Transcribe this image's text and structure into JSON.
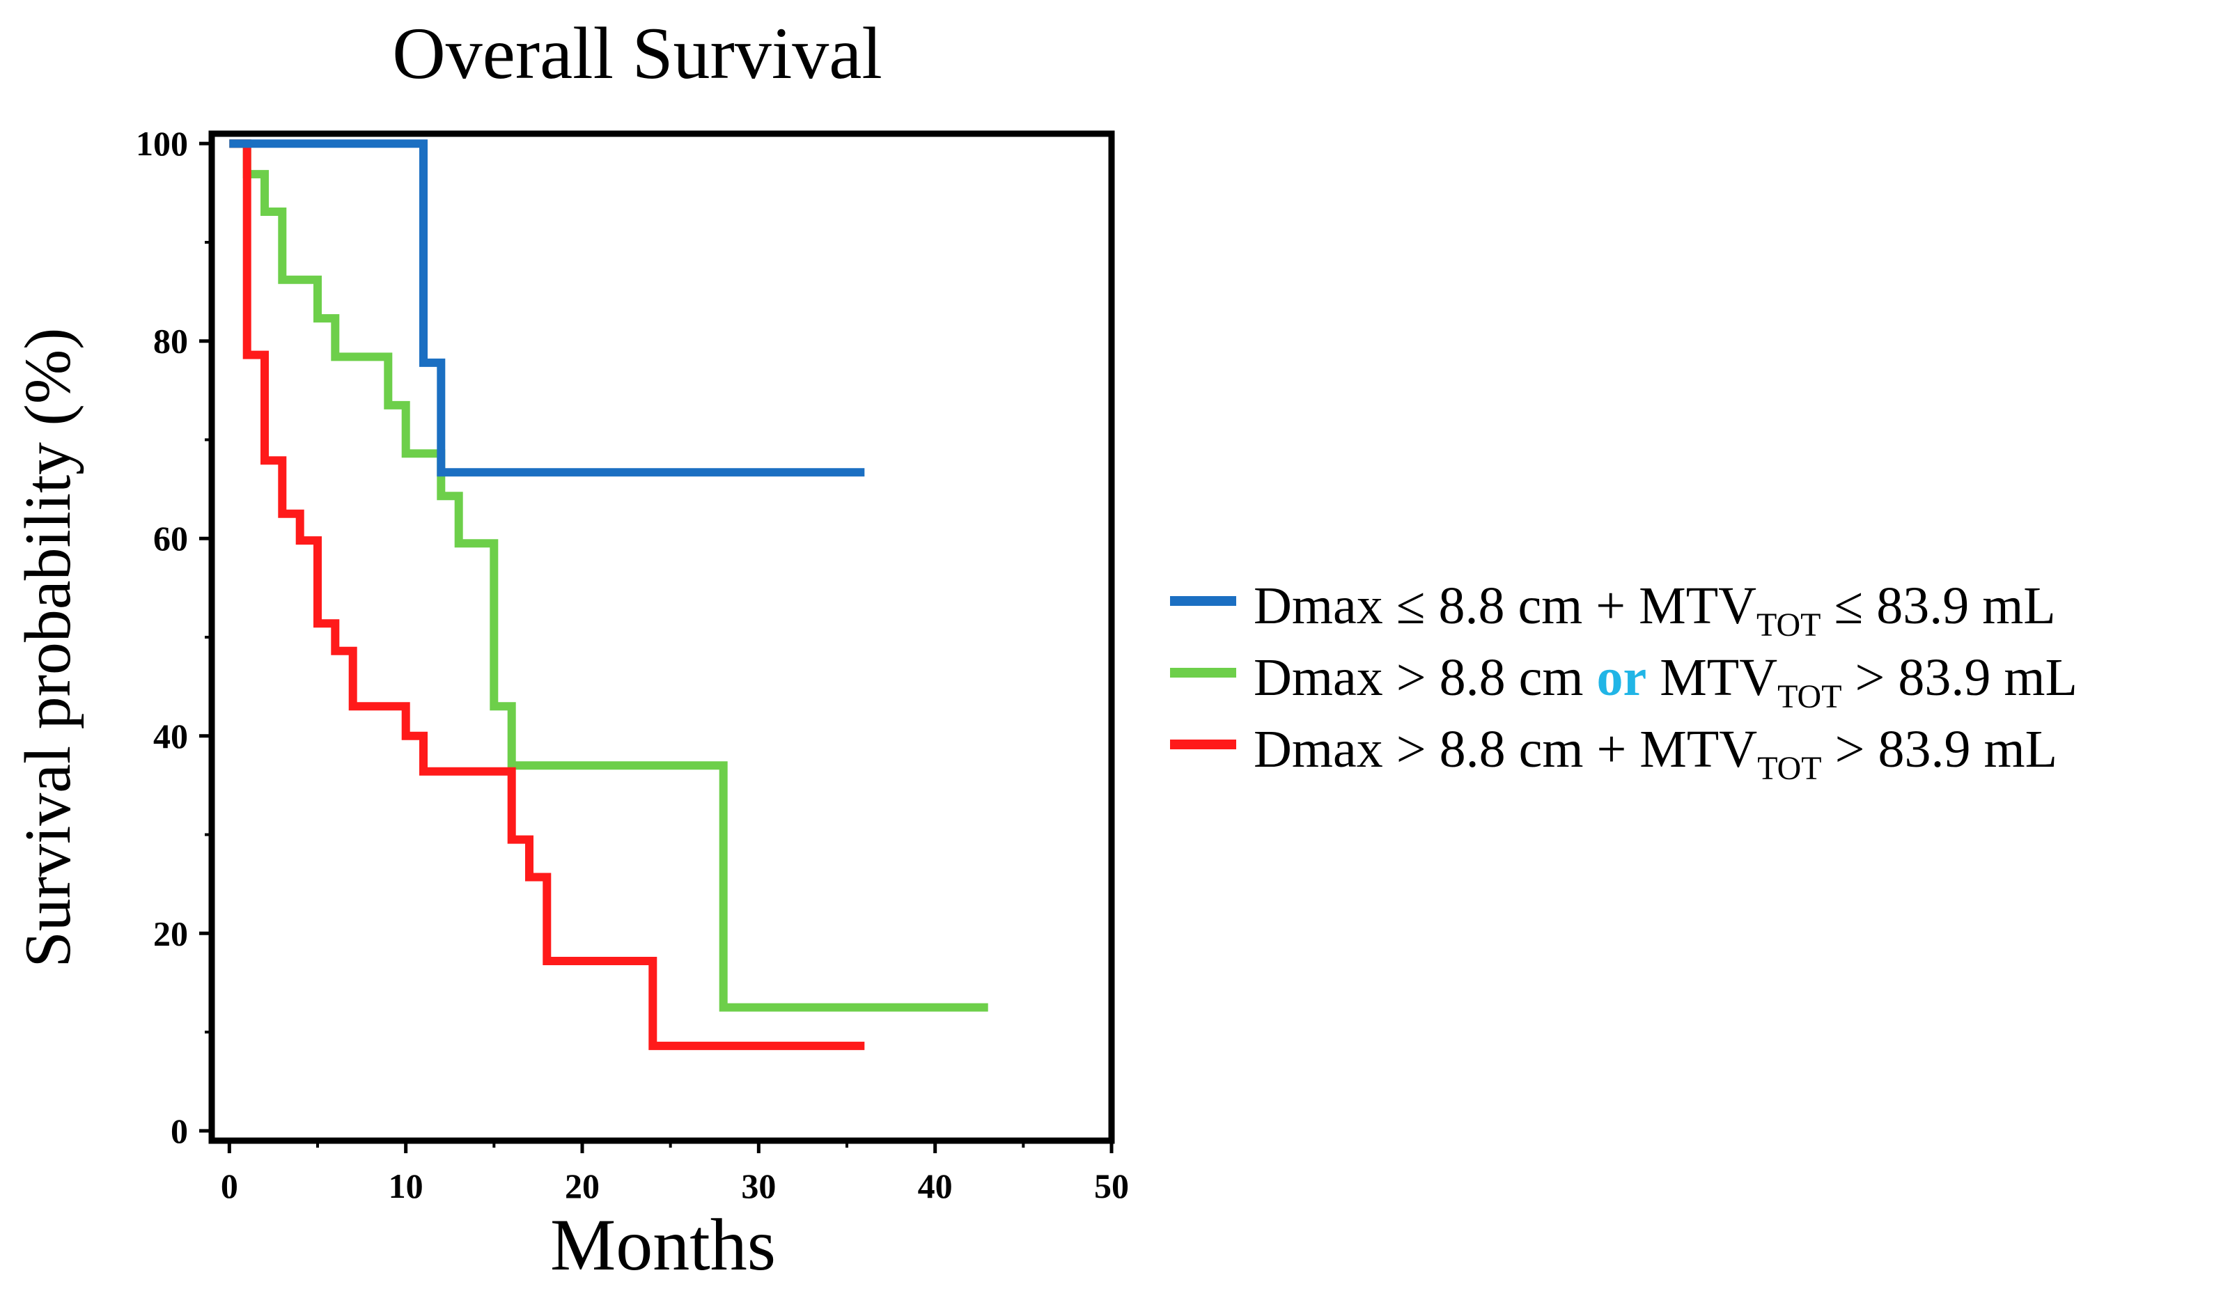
{
  "chart_data": {
    "type": "line",
    "title": "Overall Survival",
    "xlabel": "Months",
    "ylabel": "Survival probability (%)",
    "xlim": [
      -1,
      50
    ],
    "ylim": [
      -1,
      101
    ],
    "xticks": [
      0,
      10,
      20,
      30,
      40,
      50
    ],
    "yticks": [
      0,
      20,
      40,
      60,
      80,
      100
    ],
    "xtick_labels": [
      "0",
      "10",
      "20",
      "30",
      "40",
      "50"
    ],
    "ytick_labels": [
      "0",
      "20",
      "40",
      "60",
      "80",
      "100"
    ],
    "grid": false,
    "legend_position": "right",
    "series": [
      {
        "name": "Dmax ≤ 8.8 cm + MTVTOT ≤ 83.9 mL",
        "color": "#1b6fc2",
        "step_points": [
          [
            0,
            100
          ],
          [
            11,
            100
          ],
          [
            11,
            77.8
          ],
          [
            12,
            77.8
          ],
          [
            12,
            66.7
          ],
          [
            36,
            66.7
          ]
        ]
      },
      {
        "name": "Dmax > 8.8 cm or MTVTOT > 83.9 mL",
        "color": "#6dcf4a",
        "step_points": [
          [
            0,
            100
          ],
          [
            1,
            100
          ],
          [
            1,
            96.9
          ],
          [
            2,
            96.9
          ],
          [
            2,
            93.1
          ],
          [
            3,
            93.1
          ],
          [
            3,
            86.2
          ],
          [
            5,
            86.2
          ],
          [
            5,
            82.3
          ],
          [
            6,
            82.3
          ],
          [
            6,
            78.4
          ],
          [
            9,
            78.4
          ],
          [
            9,
            73.5
          ],
          [
            10,
            73.5
          ],
          [
            10,
            68.6
          ],
          [
            12,
            68.6
          ],
          [
            12,
            64.3
          ],
          [
            13,
            64.3
          ],
          [
            13,
            59.5
          ],
          [
            15,
            59.5
          ],
          [
            15,
            43
          ],
          [
            16,
            43
          ],
          [
            16,
            37
          ],
          [
            28,
            37
          ],
          [
            28,
            12.5
          ],
          [
            43,
            12.5
          ]
        ]
      },
      {
        "name": "Dmax > 8.8 cm + MTVTOT > 83.9 mL",
        "color": "#ff1a1a",
        "step_points": [
          [
            0,
            100
          ],
          [
            1,
            100
          ],
          [
            1,
            78.6
          ],
          [
            2,
            78.6
          ],
          [
            2,
            67.9
          ],
          [
            3,
            67.9
          ],
          [
            3,
            62.5
          ],
          [
            4,
            62.5
          ],
          [
            4,
            59.8
          ],
          [
            5,
            59.8
          ],
          [
            5,
            51.4
          ],
          [
            6,
            51.4
          ],
          [
            6,
            48.6
          ],
          [
            7,
            48.6
          ],
          [
            7,
            43
          ],
          [
            10,
            43
          ],
          [
            10,
            40
          ],
          [
            11,
            40
          ],
          [
            11,
            36.4
          ],
          [
            16,
            36.4
          ],
          [
            16,
            29.5
          ],
          [
            17,
            29.5
          ],
          [
            17,
            25.7
          ],
          [
            18,
            25.7
          ],
          [
            18,
            17.2
          ],
          [
            24,
            17.2
          ],
          [
            24,
            8.6
          ],
          [
            36,
            8.6
          ]
        ]
      }
    ],
    "legend": [
      {
        "prefix": "Dmax ≤ 8.8 cm + MTV",
        "sub": "TOT",
        "suffix": " ≤ 83.9 mL",
        "color": "#1b6fc2"
      },
      {
        "prefix": "Dmax > 8.8 cm ",
        "or_word": "or",
        "or_color": "#21b5e6",
        "middle": " MTV",
        "sub": "TOT",
        "suffix": " > 83.9 mL",
        "color": "#6dcf4a"
      },
      {
        "prefix": "Dmax > 8.8 cm + MTV",
        "sub": "TOT",
        "suffix": " > 83.9 mL",
        "color": "#ff1a1a"
      }
    ]
  }
}
